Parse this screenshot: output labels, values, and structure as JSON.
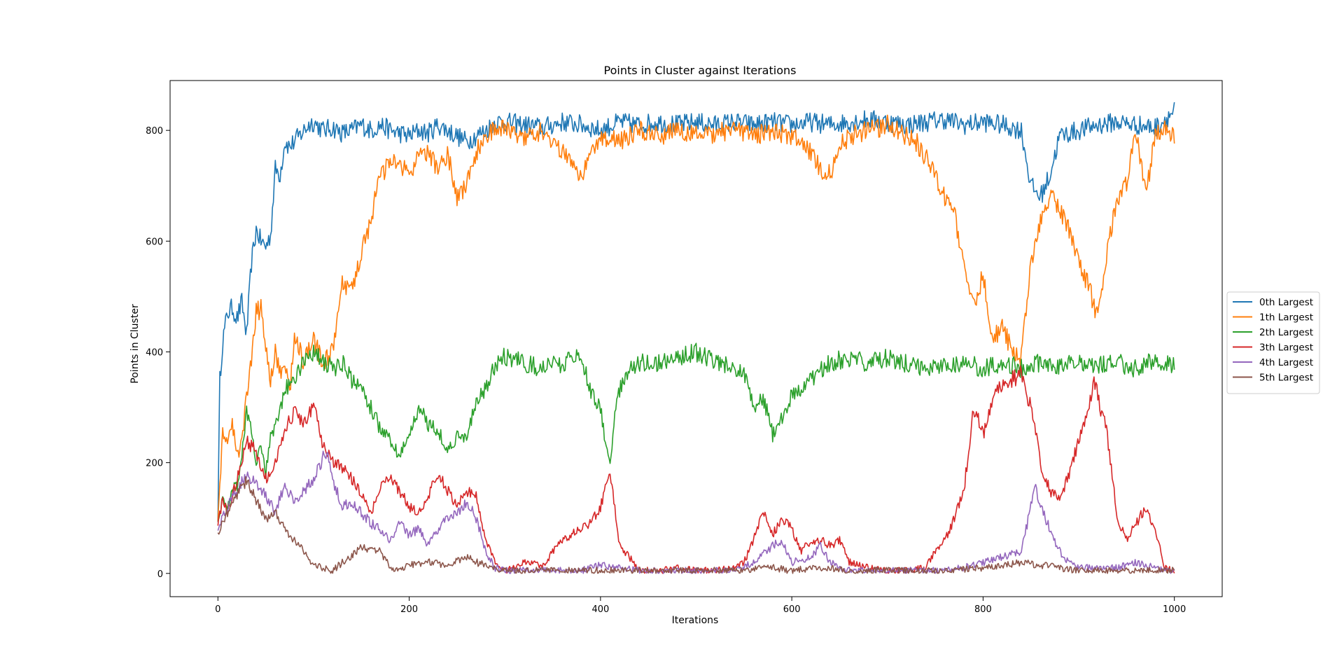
{
  "chart_data": {
    "type": "line",
    "title": "Points in Cluster against Iterations",
    "xlabel": "Iterations",
    "ylabel": "Points in Cluster",
    "xlim": [
      -50,
      1050
    ],
    "ylim": [
      -42,
      890
    ],
    "xticks": [
      0,
      200,
      400,
      600,
      800,
      1000
    ],
    "yticks": [
      0,
      200,
      400,
      600,
      800
    ],
    "xtick_labels": [
      "0",
      "200",
      "400",
      "600",
      "800",
      "1000"
    ],
    "ytick_labels": [
      "0",
      "200",
      "400",
      "600",
      "800"
    ],
    "grid": false,
    "legend_position": "center-right, outside plot",
    "series": [
      {
        "name": "0th Largest",
        "color": "#1f77b4",
        "x": [
          0,
          2,
          5,
          10,
          15,
          20,
          25,
          30,
          35,
          40,
          45,
          50,
          55,
          60,
          65,
          70,
          75,
          80,
          85,
          90,
          95,
          100,
          110,
          120,
          130,
          140,
          150,
          160,
          170,
          180,
          190,
          200,
          210,
          220,
          230,
          240,
          250,
          260,
          270,
          280,
          290,
          300,
          320,
          340,
          360,
          380,
          400,
          420,
          440,
          460,
          480,
          500,
          520,
          540,
          560,
          580,
          600,
          620,
          640,
          660,
          680,
          700,
          720,
          740,
          760,
          780,
          800,
          820,
          840,
          850,
          860,
          870,
          880,
          900,
          920,
          940,
          960,
          980,
          1000
        ],
        "values": [
          100,
          350,
          420,
          470,
          480,
          460,
          490,
          430,
          560,
          620,
          600,
          590,
          610,
          730,
          720,
          780,
          770,
          780,
          790,
          800,
          810,
          815,
          800,
          805,
          795,
          800,
          810,
          800,
          810,
          800,
          795,
          790,
          800,
          795,
          810,
          800,
          790,
          780,
          790,
          800,
          815,
          815,
          810,
          805,
          815,
          810,
          800,
          815,
          810,
          815,
          810,
          815,
          810,
          815,
          810,
          815,
          810,
          815,
          810,
          815,
          820,
          815,
          810,
          815,
          820,
          810,
          815,
          810,
          800,
          700,
          680,
          720,
          790,
          800,
          810,
          815,
          810,
          805,
          835
        ]
      },
      {
        "name": "1th Largest",
        "color": "#ff7f0e",
        "x": [
          0,
          5,
          10,
          15,
          20,
          25,
          30,
          35,
          40,
          45,
          50,
          55,
          60,
          65,
          70,
          75,
          80,
          85,
          90,
          95,
          100,
          110,
          120,
          130,
          140,
          150,
          160,
          170,
          180,
          190,
          200,
          210,
          220,
          230,
          240,
          250,
          260,
          270,
          280,
          290,
          300,
          320,
          340,
          360,
          370,
          380,
          390,
          400,
          420,
          440,
          460,
          480,
          500,
          520,
          540,
          560,
          580,
          600,
          610,
          620,
          630,
          640,
          650,
          660,
          680,
          700,
          720,
          730,
          740,
          750,
          760,
          770,
          780,
          790,
          800,
          810,
          820,
          830,
          840,
          850,
          860,
          870,
          880,
          890,
          900,
          910,
          920,
          930,
          940,
          950,
          960,
          970,
          980,
          990,
          1000
        ],
        "values": [
          100,
          250,
          240,
          270,
          210,
          240,
          320,
          380,
          470,
          480,
          410,
          350,
          400,
          360,
          380,
          330,
          420,
          410,
          380,
          400,
          420,
          380,
          400,
          520,
          510,
          580,
          640,
          720,
          740,
          740,
          720,
          750,
          760,
          730,
          760,
          680,
          700,
          760,
          790,
          800,
          805,
          790,
          800,
          760,
          740,
          720,
          760,
          790,
          780,
          800,
          790,
          800,
          790,
          795,
          800,
          790,
          800,
          790,
          780,
          760,
          730,
          720,
          770,
          790,
          800,
          810,
          790,
          780,
          750,
          720,
          680,
          650,
          550,
          480,
          540,
          420,
          450,
          400,
          390,
          560,
          640,
          680,
          660,
          620,
          560,
          520,
          460,
          580,
          680,
          700,
          800,
          680,
          790,
          800,
          790
        ]
      },
      {
        "name": "2th Largest",
        "color": "#2ca02c",
        "x": [
          0,
          5,
          10,
          15,
          20,
          25,
          30,
          35,
          40,
          45,
          50,
          55,
          60,
          70,
          80,
          90,
          100,
          110,
          120,
          130,
          140,
          150,
          160,
          170,
          180,
          190,
          200,
          210,
          220,
          230,
          240,
          250,
          260,
          270,
          280,
          290,
          300,
          320,
          340,
          360,
          380,
          390,
          400,
          405,
          410,
          415,
          420,
          430,
          440,
          460,
          480,
          500,
          520,
          540,
          550,
          560,
          570,
          580,
          590,
          600,
          620,
          640,
          660,
          680,
          700,
          720,
          740,
          760,
          780,
          800,
          820,
          840,
          860,
          880,
          900,
          920,
          940,
          960,
          980,
          1000
        ],
        "values": [
          100,
          130,
          120,
          150,
          160,
          210,
          300,
          250,
          200,
          230,
          180,
          250,
          260,
          330,
          350,
          390,
          400,
          380,
          370,
          380,
          350,
          330,
          300,
          260,
          240,
          210,
          250,
          300,
          270,
          260,
          220,
          250,
          240,
          310,
          330,
          380,
          390,
          380,
          370,
          380,
          390,
          330,
          300,
          240,
          200,
          280,
          330,
          370,
          380,
          380,
          390,
          400,
          380,
          370,
          360,
          300,
          320,
          250,
          280,
          320,
          350,
          380,
          390,
          380,
          390,
          380,
          370,
          380,
          380,
          370,
          380,
          370,
          380,
          375,
          385,
          375,
          380,
          370,
          385,
          375
        ]
      },
      {
        "name": "3th Largest",
        "color": "#d62728",
        "x": [
          0,
          5,
          10,
          20,
          30,
          40,
          50,
          60,
          70,
          80,
          90,
          100,
          110,
          120,
          130,
          140,
          150,
          160,
          170,
          180,
          190,
          200,
          210,
          220,
          230,
          240,
          250,
          260,
          270,
          280,
          290,
          300,
          320,
          340,
          360,
          380,
          390,
          400,
          405,
          410,
          415,
          420,
          430,
          440,
          460,
          480,
          500,
          520,
          540,
          550,
          560,
          570,
          580,
          590,
          600,
          610,
          620,
          630,
          640,
          650,
          660,
          680,
          700,
          720,
          740,
          750,
          760,
          770,
          780,
          790,
          800,
          810,
          820,
          830,
          840,
          850,
          860,
          870,
          880,
          890,
          900,
          910,
          915,
          920,
          930,
          940,
          950,
          960,
          970,
          980,
          990,
          1000
        ],
        "values": [
          90,
          130,
          110,
          170,
          240,
          220,
          170,
          200,
          260,
          290,
          270,
          300,
          230,
          200,
          190,
          170,
          140,
          110,
          160,
          170,
          150,
          120,
          110,
          140,
          180,
          150,
          120,
          150,
          140,
          60,
          20,
          5,
          20,
          15,
          60,
          80,
          90,
          120,
          150,
          180,
          120,
          50,
          30,
          5,
          5,
          10,
          5,
          5,
          10,
          20,
          60,
          110,
          70,
          100,
          80,
          40,
          60,
          60,
          50,
          60,
          20,
          10,
          5,
          5,
          10,
          40,
          60,
          100,
          150,
          300,
          250,
          320,
          340,
          350,
          360,
          300,
          200,
          150,
          130,
          180,
          240,
          290,
          350,
          320,
          250,
          100,
          60,
          90,
          120,
          80,
          10,
          5
        ]
      },
      {
        "name": "4th Largest",
        "color": "#9467bd",
        "x": [
          0,
          5,
          10,
          20,
          30,
          40,
          50,
          60,
          70,
          80,
          90,
          100,
          110,
          115,
          120,
          130,
          140,
          150,
          160,
          170,
          180,
          190,
          200,
          210,
          220,
          230,
          240,
          250,
          260,
          270,
          280,
          290,
          300,
          340,
          380,
          390,
          400,
          420,
          440,
          500,
          540,
          560,
          580,
          590,
          600,
          620,
          630,
          640,
          660,
          700,
          760,
          780,
          800,
          820,
          840,
          850,
          855,
          860,
          870,
          880,
          890,
          900,
          940,
          960,
          980,
          1000
        ],
        "values": [
          80,
          100,
          120,
          150,
          180,
          160,
          140,
          110,
          160,
          130,
          150,
          170,
          210,
          220,
          170,
          120,
          130,
          110,
          90,
          80,
          60,
          90,
          70,
          80,
          50,
          80,
          100,
          110,
          130,
          100,
          40,
          10,
          5,
          5,
          5,
          10,
          15,
          10,
          5,
          5,
          5,
          20,
          50,
          60,
          20,
          30,
          50,
          20,
          5,
          5,
          5,
          10,
          20,
          30,
          40,
          120,
          160,
          120,
          80,
          40,
          20,
          10,
          10,
          20,
          10,
          5
        ]
      },
      {
        "name": "5th Largest",
        "color": "#8c564b",
        "x": [
          0,
          5,
          10,
          20,
          30,
          40,
          50,
          60,
          70,
          80,
          90,
          100,
          110,
          120,
          130,
          140,
          150,
          160,
          170,
          180,
          190,
          200,
          220,
          240,
          260,
          270,
          280,
          300,
          340,
          380,
          420,
          460,
          500,
          540,
          580,
          600,
          620,
          640,
          660,
          700,
          760,
          800,
          820,
          840,
          860,
          880,
          900,
          940,
          980,
          1000
        ],
        "values": [
          75,
          90,
          110,
          140,
          170,
          130,
          100,
          110,
          80,
          60,
          40,
          15,
          10,
          5,
          20,
          30,
          50,
          40,
          40,
          10,
          10,
          15,
          20,
          15,
          30,
          20,
          15,
          5,
          5,
          5,
          5,
          5,
          5,
          5,
          10,
          5,
          10,
          10,
          5,
          5,
          5,
          10,
          15,
          20,
          15,
          10,
          5,
          5,
          5,
          5
        ]
      }
    ]
  }
}
